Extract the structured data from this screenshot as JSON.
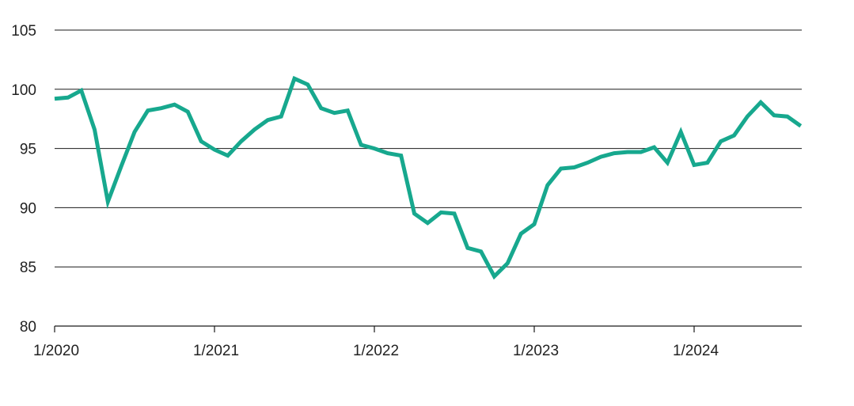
{
  "chart_data": {
    "type": "line",
    "title": "",
    "xlabel": "",
    "ylabel": "",
    "ylim": [
      80,
      105
    ],
    "yticks": [
      80,
      85,
      90,
      95,
      100,
      105
    ],
    "yticklabels": [
      "80",
      "85",
      "90",
      "95",
      "100",
      "105"
    ],
    "xticklabels": [
      "1/2020",
      "1/2021",
      "1/2022",
      "1/2023",
      "1/2024"
    ],
    "grid": true,
    "series": [
      {
        "color": "#17a88e",
        "x": [
          "1/2020",
          "2/2020",
          "3/2020",
          "4/2020",
          "5/2020",
          "6/2020",
          "7/2020",
          "8/2020",
          "9/2020",
          "10/2020",
          "11/2020",
          "12/2020",
          "1/2021",
          "2/2021",
          "3/2021",
          "4/2021",
          "5/2021",
          "6/2021",
          "7/2021",
          "8/2021",
          "9/2021",
          "10/2021",
          "11/2021",
          "12/2021",
          "1/2022",
          "2/2022",
          "3/2022",
          "4/2022",
          "5/2022",
          "6/2022",
          "7/2022",
          "8/2022",
          "9/2022",
          "10/2022",
          "11/2022",
          "12/2022",
          "1/2023",
          "2/2023",
          "3/2023",
          "4/2023",
          "5/2023",
          "6/2023",
          "7/2023",
          "8/2023",
          "9/2023",
          "10/2023",
          "11/2023",
          "12/2023",
          "1/2024",
          "2/2024",
          "3/2024",
          "4/2024",
          "5/2024",
          "6/2024",
          "7/2024",
          "8/2024",
          "9/2024"
        ],
        "values": [
          99.2,
          99.3,
          99.9,
          96.6,
          90.5,
          93.5,
          96.4,
          98.2,
          98.4,
          98.7,
          98.1,
          95.6,
          94.9,
          94.4,
          95.6,
          96.6,
          97.4,
          97.7,
          100.9,
          100.4,
          98.4,
          98.0,
          98.2,
          95.3,
          95.0,
          94.6,
          94.4,
          89.5,
          88.7,
          89.6,
          89.5,
          86.6,
          86.3,
          84.2,
          85.3,
          87.8,
          88.6,
          91.9,
          93.3,
          93.4,
          93.8,
          94.3,
          94.6,
          94.7,
          94.7,
          95.1,
          93.8,
          96.4,
          93.6,
          93.8,
          95.6,
          96.1,
          97.7,
          98.9,
          97.8,
          97.7,
          96.9
        ]
      }
    ]
  }
}
